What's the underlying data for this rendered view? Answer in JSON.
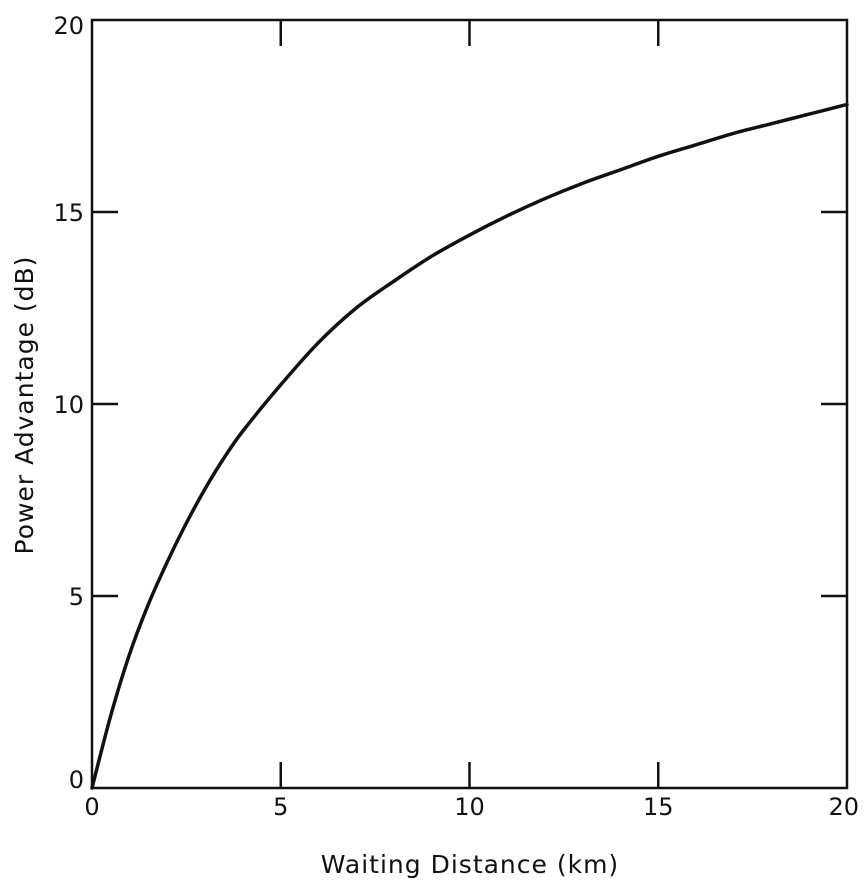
{
  "chart_data": {
    "type": "line",
    "title": "",
    "xlabel": "Waiting Distance (km)",
    "ylabel": "Power Advantage (dB)",
    "xlim": [
      0,
      20
    ],
    "ylim": [
      0,
      20
    ],
    "x_ticks": [
      "0",
      "5",
      "10",
      "15",
      "20"
    ],
    "y_ticks": [
      "0",
      "5",
      "10",
      "15",
      "20"
    ],
    "grid": false,
    "legend": "none",
    "series": [
      {
        "color": "#111111",
        "x": [
          0,
          0.5,
          1,
          1.5,
          2,
          2.5,
          3,
          3.5,
          4,
          5,
          6,
          7,
          8,
          9,
          10,
          11,
          12,
          13,
          14,
          15,
          16,
          17,
          18,
          19,
          20
        ],
        "y": [
          0,
          1.9,
          3.5,
          4.8,
          5.9,
          6.9,
          7.8,
          8.6,
          9.3,
          10.5,
          11.6,
          12.5,
          13.2,
          13.85,
          14.4,
          14.9,
          15.35,
          15.75,
          16.1,
          16.45,
          16.75,
          17.05,
          17.3,
          17.55,
          17.8
        ]
      }
    ]
  }
}
